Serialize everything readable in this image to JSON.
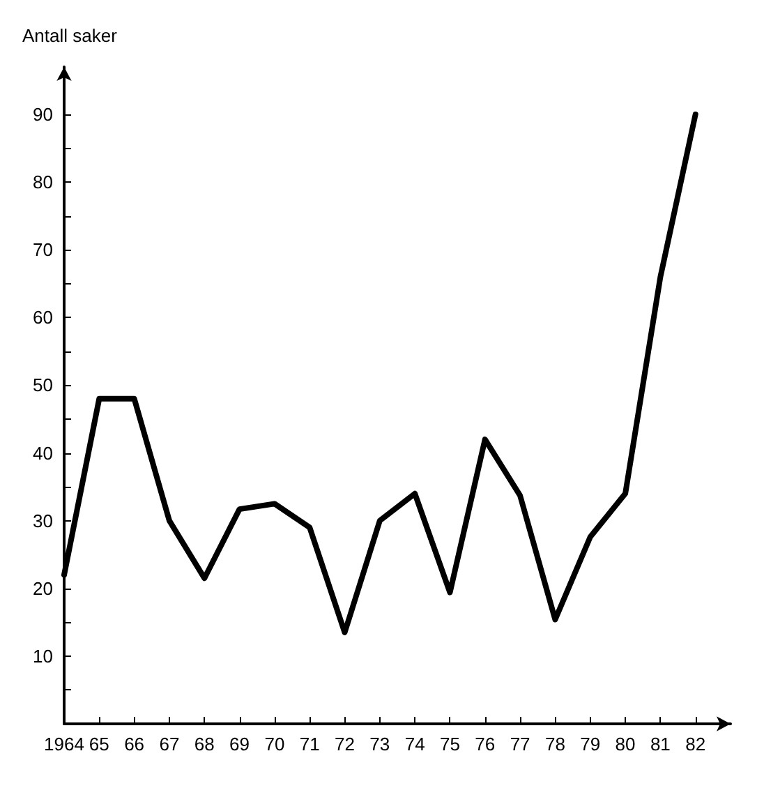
{
  "chart_data": {
    "type": "line",
    "ylabel": "Antall saker",
    "x": [
      1964,
      1965,
      1966,
      1967,
      1968,
      1969,
      1970,
      1971,
      1972,
      1973,
      1974,
      1975,
      1976,
      1977,
      1978,
      1979,
      1980,
      1981,
      1982
    ],
    "series": [
      {
        "color": "#000000",
        "values": [
          22,
          48,
          48,
          30,
          21.5,
          31.7,
          32.5,
          29,
          13.5,
          30,
          34,
          19.4,
          42,
          33.7,
          15.4,
          27.6,
          34,
          66,
          90
        ]
      }
    ],
    "xlim": [
      1964,
      1983
    ],
    "xticks": [
      {
        "value": 1964,
        "label": "1964"
      },
      {
        "value": 1965,
        "label": "65"
      },
      {
        "value": 1966,
        "label": "66"
      },
      {
        "value": 1967,
        "label": "67"
      },
      {
        "value": 1968,
        "label": "68"
      },
      {
        "value": 1969,
        "label": "69"
      },
      {
        "value": 1970,
        "label": "70"
      },
      {
        "value": 1971,
        "label": "71"
      },
      {
        "value": 1972,
        "label": "72"
      },
      {
        "value": 1973,
        "label": "73"
      },
      {
        "value": 1974,
        "label": "74"
      },
      {
        "value": 1975,
        "label": "75"
      },
      {
        "value": 1976,
        "label": "76"
      },
      {
        "value": 1977,
        "label": "77"
      },
      {
        "value": 1978,
        "label": "78"
      },
      {
        "value": 1979,
        "label": "79"
      },
      {
        "value": 1980,
        "label": "80"
      },
      {
        "value": 1981,
        "label": "81"
      },
      {
        "value": 1982,
        "label": "82"
      }
    ],
    "ylim": [
      0,
      97
    ],
    "yticks": [
      {
        "value": 5,
        "label": null
      },
      10,
      {
        "value": 15,
        "label": null
      },
      20,
      {
        "value": 25,
        "label": null
      },
      30,
      {
        "value": 35,
        "label": null
      },
      40,
      {
        "value": 45,
        "label": null
      },
      50,
      {
        "value": 55,
        "label": null
      },
      60,
      {
        "value": 65,
        "label": null
      },
      70,
      {
        "value": 75,
        "label": null
      },
      80,
      {
        "value": 85,
        "label": null
      },
      90
    ],
    "grid": false,
    "marker": "none",
    "line_style": "solid"
  }
}
